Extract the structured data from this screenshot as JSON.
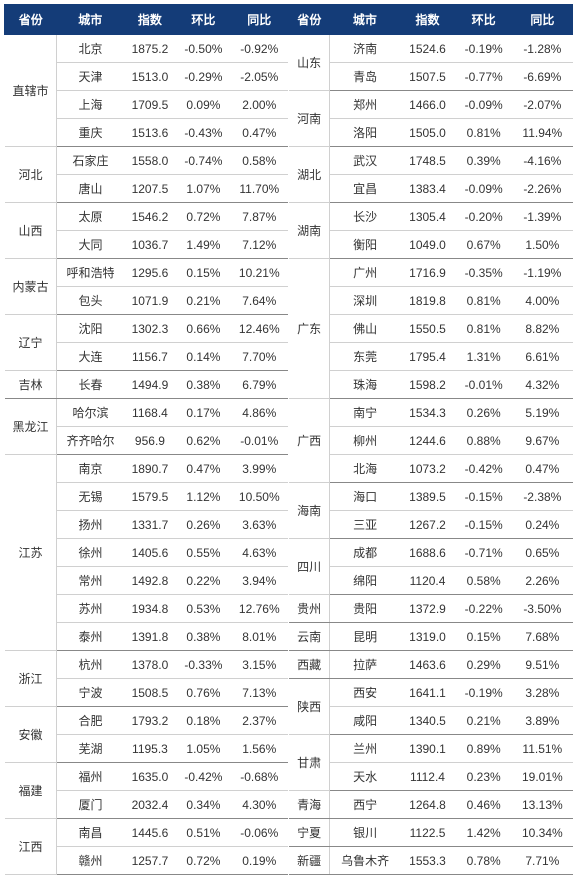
{
  "styling": {
    "header_bg": "#143c78",
    "header_fg": "#ffffff",
    "row_border": "#d0d0d0",
    "group_border": "#888888",
    "font_family": "Microsoft YaHei",
    "font_size_pt": 9,
    "header_font_weight": "bold"
  },
  "columns": [
    "省份",
    "城市",
    "指数",
    "环比",
    "同比"
  ],
  "left": [
    {
      "prov": "直辖市",
      "rows": [
        {
          "city": "北京",
          "idx": "1875.2",
          "mom": "-0.50%",
          "yoy": "-0.92%"
        },
        {
          "city": "天津",
          "idx": "1513.0",
          "mom": "-0.29%",
          "yoy": "-2.05%"
        },
        {
          "city": "上海",
          "idx": "1709.5",
          "mom": "0.09%",
          "yoy": "2.00%"
        },
        {
          "city": "重庆",
          "idx": "1513.6",
          "mom": "-0.43%",
          "yoy": "0.47%"
        }
      ]
    },
    {
      "prov": "河北",
      "rows": [
        {
          "city": "石家庄",
          "idx": "1558.0",
          "mom": "-0.74%",
          "yoy": "0.58%"
        },
        {
          "city": "唐山",
          "idx": "1207.5",
          "mom": "1.07%",
          "yoy": "11.70%"
        }
      ]
    },
    {
      "prov": "山西",
      "rows": [
        {
          "city": "太原",
          "idx": "1546.2",
          "mom": "0.72%",
          "yoy": "7.87%"
        },
        {
          "city": "大同",
          "idx": "1036.7",
          "mom": "1.49%",
          "yoy": "7.12%"
        }
      ]
    },
    {
      "prov": "内蒙古",
      "rows": [
        {
          "city": "呼和浩特",
          "idx": "1295.6",
          "mom": "0.15%",
          "yoy": "10.21%"
        },
        {
          "city": "包头",
          "idx": "1071.9",
          "mom": "0.21%",
          "yoy": "7.64%"
        }
      ]
    },
    {
      "prov": "辽宁",
      "rows": [
        {
          "city": "沈阳",
          "idx": "1302.3",
          "mom": "0.66%",
          "yoy": "12.46%"
        },
        {
          "city": "大连",
          "idx": "1156.7",
          "mom": "0.14%",
          "yoy": "7.70%"
        }
      ]
    },
    {
      "prov": "吉林",
      "rows": [
        {
          "city": "长春",
          "idx": "1494.9",
          "mom": "0.38%",
          "yoy": "6.79%"
        }
      ]
    },
    {
      "prov": "黑龙江",
      "rows": [
        {
          "city": "哈尔滨",
          "idx": "1168.4",
          "mom": "0.17%",
          "yoy": "4.86%"
        },
        {
          "city": "齐齐哈尔",
          "idx": "956.9",
          "mom": "0.62%",
          "yoy": "-0.01%"
        }
      ]
    },
    {
      "prov": "江苏",
      "rows": [
        {
          "city": "南京",
          "idx": "1890.7",
          "mom": "0.47%",
          "yoy": "3.99%"
        },
        {
          "city": "无锡",
          "idx": "1579.5",
          "mom": "1.12%",
          "yoy": "10.50%"
        },
        {
          "city": "扬州",
          "idx": "1331.7",
          "mom": "0.26%",
          "yoy": "3.63%"
        },
        {
          "city": "徐州",
          "idx": "1405.6",
          "mom": "0.55%",
          "yoy": "4.63%"
        },
        {
          "city": "常州",
          "idx": "1492.8",
          "mom": "0.22%",
          "yoy": "3.94%"
        },
        {
          "city": "苏州",
          "idx": "1934.8",
          "mom": "0.53%",
          "yoy": "12.76%"
        },
        {
          "city": "泰州",
          "idx": "1391.8",
          "mom": "0.38%",
          "yoy": "8.01%"
        }
      ]
    },
    {
      "prov": "浙江",
      "rows": [
        {
          "city": "杭州",
          "idx": "1378.0",
          "mom": "-0.33%",
          "yoy": "3.15%"
        },
        {
          "city": "宁波",
          "idx": "1508.5",
          "mom": "0.76%",
          "yoy": "7.13%"
        }
      ]
    },
    {
      "prov": "安徽",
      "rows": [
        {
          "city": "合肥",
          "idx": "1793.2",
          "mom": "0.18%",
          "yoy": "2.37%"
        },
        {
          "city": "芜湖",
          "idx": "1195.3",
          "mom": "1.05%",
          "yoy": "1.56%"
        }
      ]
    },
    {
      "prov": "福建",
      "rows": [
        {
          "city": "福州",
          "idx": "1635.0",
          "mom": "-0.42%",
          "yoy": "-0.68%"
        },
        {
          "city": "厦门",
          "idx": "2032.4",
          "mom": "0.34%",
          "yoy": "4.30%"
        }
      ]
    },
    {
      "prov": "江西",
      "rows": [
        {
          "city": "南昌",
          "idx": "1445.6",
          "mom": "0.51%",
          "yoy": "-0.06%"
        },
        {
          "city": "赣州",
          "idx": "1257.7",
          "mom": "0.72%",
          "yoy": "0.19%"
        }
      ]
    }
  ],
  "right": [
    {
      "prov": "山东",
      "rows": [
        {
          "city": "济南",
          "idx": "1524.6",
          "mom": "-0.19%",
          "yoy": "-1.28%"
        },
        {
          "city": "青岛",
          "idx": "1507.5",
          "mom": "-0.77%",
          "yoy": "-6.69%"
        }
      ]
    },
    {
      "prov": "河南",
      "rows": [
        {
          "city": "郑州",
          "idx": "1466.0",
          "mom": "-0.09%",
          "yoy": "-2.07%"
        },
        {
          "city": "洛阳",
          "idx": "1505.0",
          "mom": "0.81%",
          "yoy": "11.94%"
        }
      ]
    },
    {
      "prov": "湖北",
      "rows": [
        {
          "city": "武汉",
          "idx": "1748.5",
          "mom": "0.39%",
          "yoy": "-4.16%"
        },
        {
          "city": "宜昌",
          "idx": "1383.4",
          "mom": "-0.09%",
          "yoy": "-2.26%"
        }
      ]
    },
    {
      "prov": "湖南",
      "rows": [
        {
          "city": "长沙",
          "idx": "1305.4",
          "mom": "-0.20%",
          "yoy": "-1.39%"
        },
        {
          "city": "衡阳",
          "idx": "1049.0",
          "mom": "0.67%",
          "yoy": "1.50%"
        }
      ]
    },
    {
      "prov": "广东",
      "rows": [
        {
          "city": "广州",
          "idx": "1716.9",
          "mom": "-0.35%",
          "yoy": "-1.19%"
        },
        {
          "city": "深圳",
          "idx": "1819.8",
          "mom": "0.81%",
          "yoy": "4.00%"
        },
        {
          "city": "佛山",
          "idx": "1550.5",
          "mom": "0.81%",
          "yoy": "8.82%"
        },
        {
          "city": "东莞",
          "idx": "1795.4",
          "mom": "1.31%",
          "yoy": "6.61%"
        },
        {
          "city": "珠海",
          "idx": "1598.2",
          "mom": "-0.01%",
          "yoy": "4.32%"
        }
      ]
    },
    {
      "prov": "广西",
      "rows": [
        {
          "city": "南宁",
          "idx": "1534.3",
          "mom": "0.26%",
          "yoy": "5.19%"
        },
        {
          "city": "柳州",
          "idx": "1244.6",
          "mom": "0.88%",
          "yoy": "9.67%"
        },
        {
          "city": "北海",
          "idx": "1073.2",
          "mom": "-0.42%",
          "yoy": "0.47%"
        }
      ]
    },
    {
      "prov": "海南",
      "rows": [
        {
          "city": "海口",
          "idx": "1389.5",
          "mom": "-0.15%",
          "yoy": "-2.38%"
        },
        {
          "city": "三亚",
          "idx": "1267.2",
          "mom": "-0.15%",
          "yoy": "0.24%"
        }
      ]
    },
    {
      "prov": "四川",
      "rows": [
        {
          "city": "成都",
          "idx": "1688.6",
          "mom": "-0.71%",
          "yoy": "0.65%"
        },
        {
          "city": "绵阳",
          "idx": "1120.4",
          "mom": "0.58%",
          "yoy": "2.26%"
        }
      ]
    },
    {
      "prov": "贵州",
      "rows": [
        {
          "city": "贵阳",
          "idx": "1372.9",
          "mom": "-0.22%",
          "yoy": "-3.50%"
        }
      ]
    },
    {
      "prov": "云南",
      "rows": [
        {
          "city": "昆明",
          "idx": "1319.0",
          "mom": "0.15%",
          "yoy": "7.68%"
        }
      ]
    },
    {
      "prov": "西藏",
      "rows": [
        {
          "city": "拉萨",
          "idx": "1463.6",
          "mom": "0.29%",
          "yoy": "9.51%"
        }
      ]
    },
    {
      "prov": "陕西",
      "rows": [
        {
          "city": "西安",
          "idx": "1641.1",
          "mom": "-0.19%",
          "yoy": "3.28%"
        },
        {
          "city": "咸阳",
          "idx": "1340.5",
          "mom": "0.21%",
          "yoy": "3.89%"
        }
      ]
    },
    {
      "prov": "甘肃",
      "rows": [
        {
          "city": "兰州",
          "idx": "1390.1",
          "mom": "0.89%",
          "yoy": "11.51%"
        },
        {
          "city": "天水",
          "idx": "1112.4",
          "mom": "0.23%",
          "yoy": "19.01%"
        }
      ]
    },
    {
      "prov": "青海",
      "rows": [
        {
          "city": "西宁",
          "idx": "1264.8",
          "mom": "0.46%",
          "yoy": "13.13%"
        }
      ]
    },
    {
      "prov": "宁夏",
      "rows": [
        {
          "city": "银川",
          "idx": "1122.5",
          "mom": "1.42%",
          "yoy": "10.34%"
        }
      ]
    },
    {
      "prov": "新疆",
      "rows": [
        {
          "city": "乌鲁木齐",
          "idx": "1553.3",
          "mom": "0.78%",
          "yoy": "7.71%"
        }
      ]
    }
  ]
}
